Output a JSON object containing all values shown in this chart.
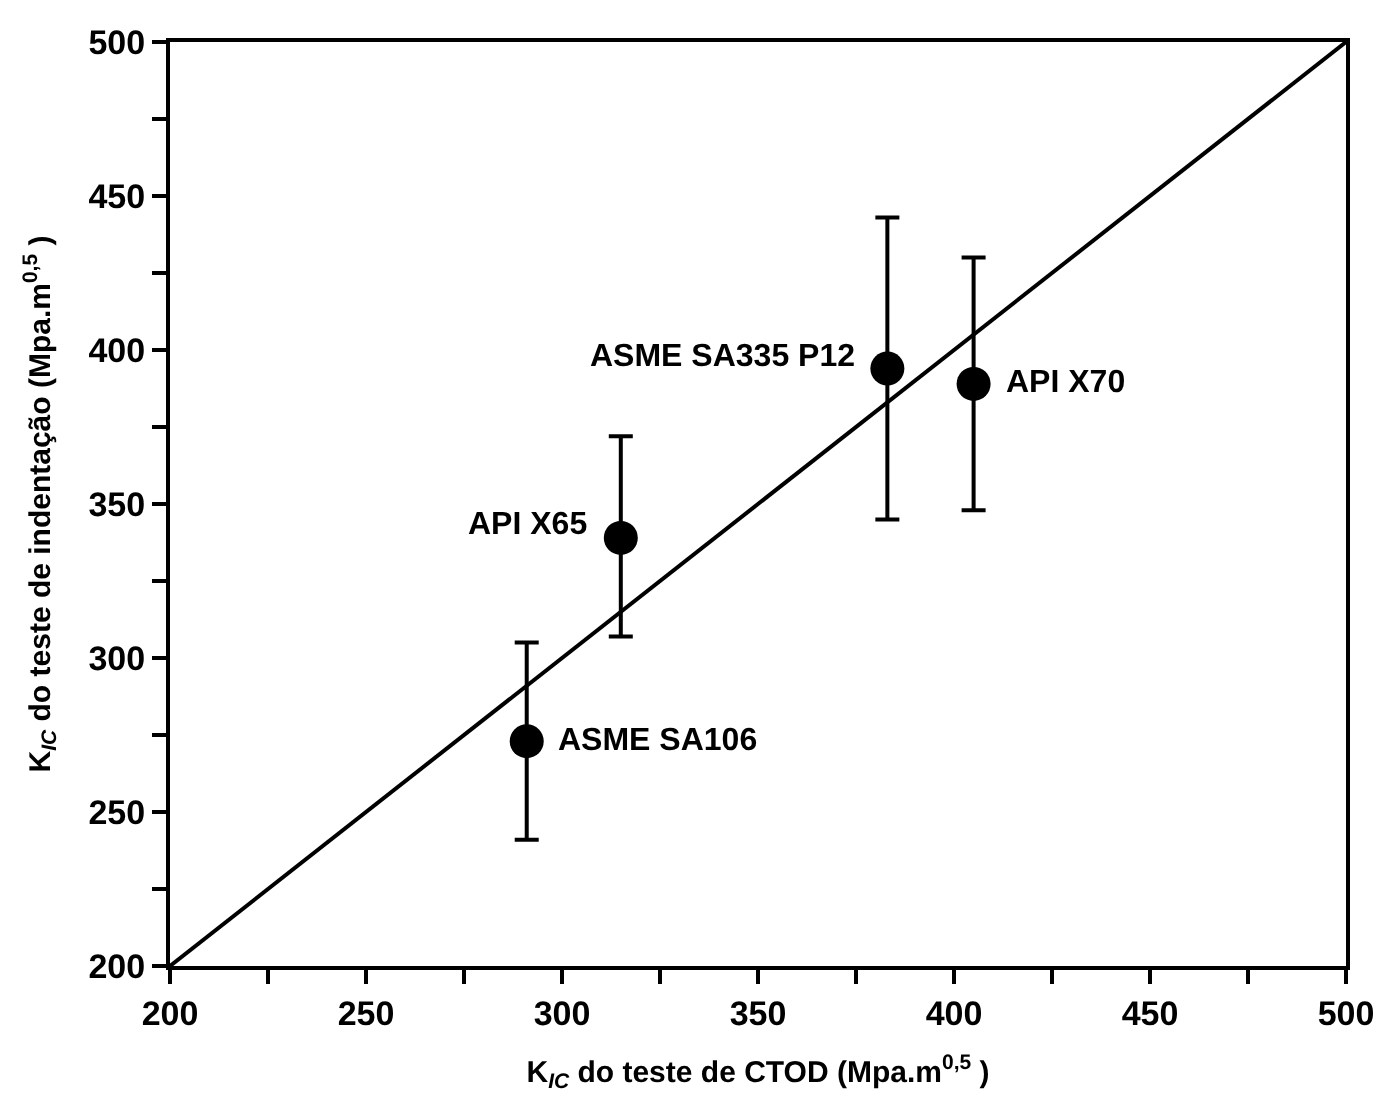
{
  "chart_data": {
    "type": "scatter",
    "xlabel": "K$_{IC}$ do teste de CTOD (Mpa.m$^{0,5}$ )",
    "ylabel": "K$_{IC}$ do teste de indentação (Mpa.m$^{0,5}$ )",
    "xlim": [
      200,
      500
    ],
    "ylim": [
      200,
      500
    ],
    "xticks": [
      200,
      {
        "value": 225,
        "label": null
      },
      250,
      {
        "value": 275,
        "label": null
      },
      300,
      {
        "value": 325,
        "label": null
      },
      350,
      {
        "value": 375,
        "label": null
      },
      400,
      {
        "value": 425,
        "label": null
      },
      450,
      {
        "value": 475,
        "label": null
      },
      500
    ],
    "yticks": [
      200,
      {
        "value": 225,
        "label": null
      },
      250,
      {
        "value": 275,
        "label": null
      },
      300,
      {
        "value": 325,
        "label": null
      },
      350,
      {
        "value": 375,
        "label": null
      },
      400,
      {
        "value": 425,
        "label": null
      },
      450,
      {
        "value": 475,
        "label": null
      },
      500
    ],
    "series": [
      {
        "marker": "circle",
        "color": "#000000",
        "x": [
          291,
          315,
          383,
          405
        ],
        "values": [
          273,
          339,
          394,
          389
        ],
        "errors": [
          [
            241,
            305
          ],
          [
            307,
            372
          ],
          [
            345,
            443
          ],
          [
            348,
            430
          ]
        ]
      },
      {
        "type": "line",
        "color": "#000000",
        "x": [
          200,
          500
        ],
        "values": [
          200,
          500
        ],
        "line_style": "solid"
      }
    ],
    "annotations": [
      {
        "text": "ASME SA106",
        "x": 291,
        "y": 273
      },
      {
        "text": "API X65",
        "x": 315,
        "y": 339
      },
      {
        "text": "ASME SA335 P12",
        "x": 383,
        "y": 394
      },
      {
        "text": "API X70",
        "x": 405,
        "y": 389
      }
    ]
  }
}
